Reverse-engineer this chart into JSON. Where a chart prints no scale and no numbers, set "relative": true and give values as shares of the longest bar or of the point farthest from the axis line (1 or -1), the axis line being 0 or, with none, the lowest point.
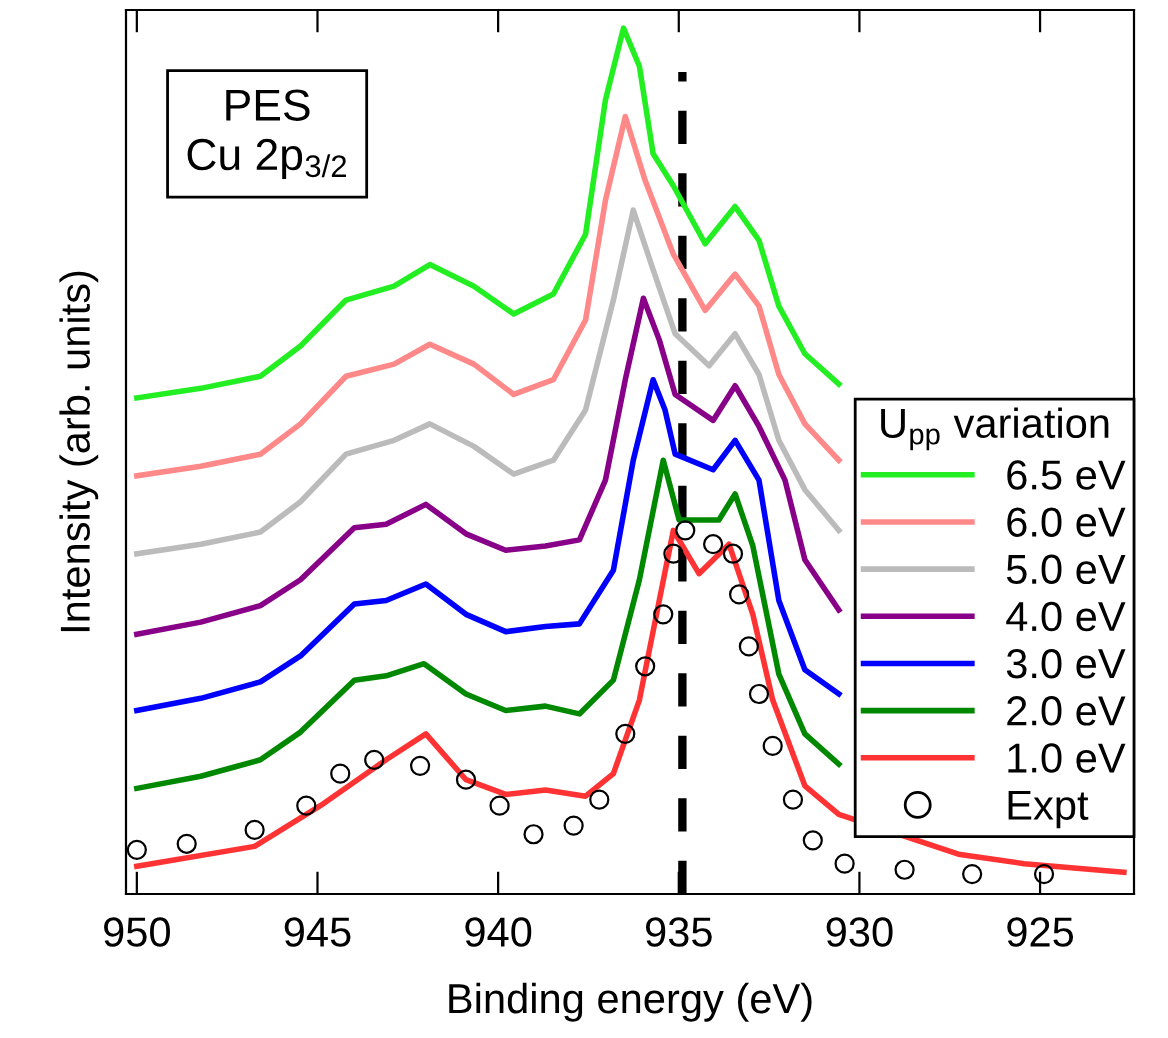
{
  "chart_data": {
    "type": "line",
    "relative": true,
    "xlabel": "Binding energy (eV)",
    "ylabel": "Intensity (arb. units)",
    "legend_title": "U$_{pp}$ variation",
    "legend": "bottom right",
    "tick_labels": "x",
    "grid": false,
    "marker": "none",
    "line_style": "solid",
    "xlim": [
      950.3,
      922.4
    ],
    "xticks": [
      950,
      945,
      940,
      935,
      930,
      925
    ],
    "annotations": [
      "PES\nCu 2p$_{3/2}$"
    ],
    "ref_lines": [
      {
        "axis": "x",
        "value": 934.9,
        "label": null,
        "color": "#000000",
        "line_style": "dashed"
      }
    ],
    "series": [
      {
        "name": "6.5 eV",
        "color": "#22ee22",
        "x": [
          950.0,
          948.23,
          946.58,
          945.47,
          944.21,
          942.88,
          941.89,
          940.67,
          939.57,
          938.47,
          937.58,
          937.03,
          936.53,
          936.09,
          935.71,
          935.15,
          934.27,
          933.44,
          932.78,
          932.23,
          931.51,
          930.57
        ],
        "values": [
          0.573,
          0.584,
          0.598,
          0.633,
          0.686,
          0.702,
          0.727,
          0.702,
          0.67,
          0.693,
          0.762,
          0.917,
          1.0,
          0.956,
          0.855,
          0.818,
          0.751,
          0.794,
          0.755,
          0.679,
          0.624,
          0.589
        ]
      },
      {
        "name": "6.0 eV",
        "color": "#ff8888",
        "x": [
          950.0,
          948.23,
          946.58,
          945.47,
          944.21,
          942.88,
          941.89,
          940.67,
          939.57,
          938.47,
          937.58,
          937.03,
          936.48,
          935.93,
          935.15,
          934.27,
          933.44,
          932.78,
          932.23,
          931.51,
          930.57
        ],
        "values": [
          0.483,
          0.494,
          0.508,
          0.543,
          0.598,
          0.612,
          0.635,
          0.612,
          0.577,
          0.594,
          0.663,
          0.801,
          0.898,
          0.824,
          0.739,
          0.674,
          0.716,
          0.679,
          0.6,
          0.543,
          0.501
        ]
      },
      {
        "name": "5.0 eV",
        "color": "#bbbbbb",
        "x": [
          950.0,
          948.23,
          946.58,
          945.47,
          944.21,
          942.88,
          941.89,
          940.67,
          939.57,
          938.47,
          937.58,
          936.81,
          936.26,
          935.71,
          935.1,
          934.16,
          933.44,
          932.78,
          932.23,
          931.51,
          930.57
        ],
        "values": [
          0.393,
          0.404,
          0.418,
          0.453,
          0.508,
          0.524,
          0.543,
          0.517,
          0.485,
          0.501,
          0.559,
          0.686,
          0.79,
          0.721,
          0.647,
          0.61,
          0.647,
          0.6,
          0.524,
          0.467,
          0.42
        ]
      },
      {
        "name": "4.0 eV",
        "color": "#880088",
        "x": [
          950.0,
          948.23,
          946.58,
          945.47,
          943.98,
          943.1,
          942.0,
          940.89,
          939.79,
          938.69,
          937.75,
          937.03,
          936.48,
          935.98,
          935.54,
          935.1,
          934.05,
          933.44,
          932.78,
          932.06,
          931.51,
          930.57
        ],
        "values": [
          0.3,
          0.314,
          0.333,
          0.363,
          0.423,
          0.427,
          0.45,
          0.416,
          0.397,
          0.402,
          0.409,
          0.478,
          0.594,
          0.688,
          0.64,
          0.577,
          0.547,
          0.587,
          0.54,
          0.478,
          0.386,
          0.328
        ]
      },
      {
        "name": "3.0 eV",
        "color": "#0000ff",
        "x": [
          950.0,
          948.23,
          946.58,
          945.47,
          943.98,
          943.1,
          942.0,
          940.89,
          939.79,
          938.69,
          937.75,
          936.81,
          936.26,
          935.71,
          935.38,
          935.1,
          934.05,
          933.44,
          932.78,
          932.23,
          931.51,
          930.57
        ],
        "values": [
          0.212,
          0.226,
          0.245,
          0.275,
          0.335,
          0.339,
          0.358,
          0.323,
          0.303,
          0.309,
          0.312,
          0.374,
          0.501,
          0.594,
          0.559,
          0.508,
          0.49,
          0.524,
          0.478,
          0.339,
          0.259,
          0.231
        ]
      },
      {
        "name": "2.0 eV",
        "color": "#008800",
        "x": [
          950.0,
          948.23,
          946.58,
          945.47,
          943.98,
          943.1,
          942.05,
          940.89,
          939.79,
          938.69,
          937.75,
          936.81,
          936.09,
          935.43,
          934.99,
          933.89,
          933.44,
          932.95,
          932.23,
          931.51,
          930.57
        ],
        "values": [
          0.122,
          0.136,
          0.155,
          0.187,
          0.247,
          0.252,
          0.266,
          0.231,
          0.212,
          0.217,
          0.208,
          0.247,
          0.363,
          0.501,
          0.432,
          0.432,
          0.462,
          0.402,
          0.254,
          0.185,
          0.15
        ]
      },
      {
        "name": "1.0 eV",
        "color": "#ff3333",
        "x": [
          950.0,
          946.74,
          944.92,
          943.1,
          942.0,
          940.89,
          939.79,
          938.69,
          937.58,
          936.81,
          936.09,
          935.54,
          935.15,
          934.44,
          933.61,
          932.95,
          932.4,
          931.51,
          930.57,
          927.26,
          925.44,
          922.68
        ],
        "values": [
          0.032,
          0.055,
          0.102,
          0.155,
          0.185,
          0.132,
          0.115,
          0.12,
          0.113,
          0.139,
          0.224,
          0.339,
          0.42,
          0.37,
          0.404,
          0.323,
          0.224,
          0.125,
          0.092,
          0.046,
          0.035,
          0.025
        ]
      },
      {
        "name": "Expt",
        "type": "scatter",
        "marker": "circle",
        "color": "#000000",
        "x": [
          950.0,
          948.62,
          946.74,
          945.31,
          944.37,
          943.43,
          942.16,
          940.89,
          939.96,
          939.02,
          937.91,
          937.2,
          936.48,
          935.93,
          935.43,
          935.15,
          934.82,
          934.05,
          933.5,
          933.33,
          933.06,
          932.78,
          932.4,
          931.84,
          931.29,
          930.41,
          928.75,
          926.88,
          924.89
        ],
        "values": [
          0.051,
          0.058,
          0.074,
          0.102,
          0.139,
          0.155,
          0.148,
          0.132,
          0.102,
          0.069,
          0.079,
          0.109,
          0.185,
          0.263,
          0.323,
          0.393,
          0.42,
          0.404,
          0.393,
          0.346,
          0.286,
          0.231,
          0.171,
          0.109,
          0.062,
          0.035,
          0.028,
          0.023,
          0.023
        ]
      }
    ]
  }
}
